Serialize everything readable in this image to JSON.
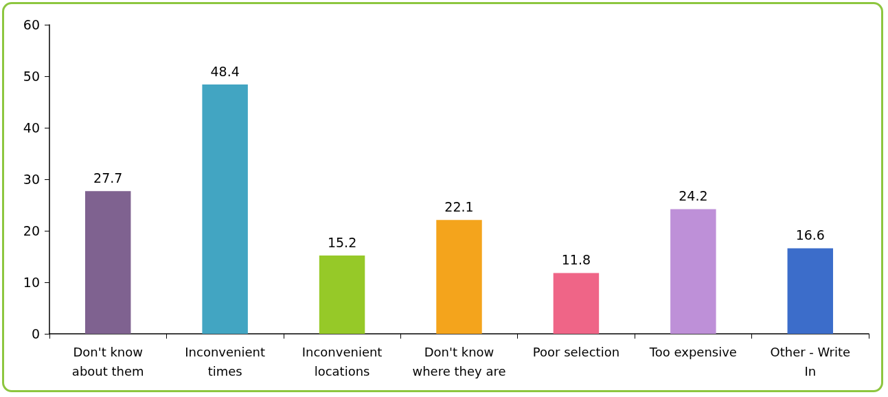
{
  "chart_data": {
    "type": "bar",
    "categories": [
      "Don't know\nabout them",
      "Inconvenient\ntimes",
      "Inconvenient\nlocations",
      "Don't know\nwhere they are",
      "Poor selection",
      "Too expensive",
      "Other - Write\nIn"
    ],
    "values": [
      27.7,
      48.4,
      15.2,
      22.1,
      11.8,
      24.2,
      16.6
    ],
    "colors": [
      "#7f6290",
      "#42a5c2",
      "#96c928",
      "#f4a41c",
      "#ef6587",
      "#be90d8",
      "#3c6dca"
    ],
    "ylim": [
      0,
      60
    ],
    "yticks": [
      0,
      10,
      20,
      30,
      40,
      50,
      60
    ],
    "grid": false,
    "data_labels": true
  }
}
